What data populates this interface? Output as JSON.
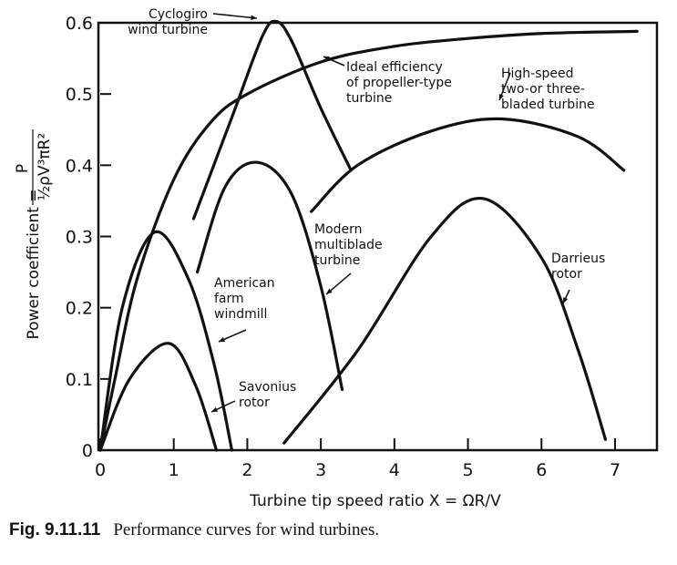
{
  "chart_data": {
    "type": "line",
    "xlabel": "Turbine tip speed ratio  X = ΩR/V",
    "ylabel": "Power coefficient = P / (½ρV³πR²)",
    "ylabel_prefix": "Power coefficient =",
    "ylabel_num": "P",
    "ylabel_den": "½ρV³πR²",
    "xlim": [
      0,
      7.57
    ],
    "ylim": [
      0,
      0.6
    ],
    "xticks": [
      0,
      1,
      2,
      3,
      4,
      5,
      6,
      7
    ],
    "yticks": [
      0,
      0.1,
      0.2,
      0.3,
      0.4,
      0.5,
      0.6
    ],
    "ytick_labels": [
      "0",
      "0.1",
      "0.2",
      "0.3",
      "0.4",
      "0.5",
      "0.6"
    ],
    "grid": false,
    "series": [
      {
        "name": "Ideal efficiency of propeller-type turbine",
        "label_lines": [
          "Ideal efficiency",
          "of propeller-type",
          "turbine"
        ],
        "points": [
          [
            0,
            0
          ],
          [
            0.2,
            0.1
          ],
          [
            0.5,
            0.24
          ],
          [
            1,
            0.38
          ],
          [
            1.5,
            0.46
          ],
          [
            2,
            0.5
          ],
          [
            3,
            0.545
          ],
          [
            4,
            0.567
          ],
          [
            5,
            0.578
          ],
          [
            6,
            0.585
          ],
          [
            7.3,
            0.588
          ]
        ]
      },
      {
        "name": "Cyclogiro wind turbine",
        "label_lines": [
          "Cyclogiro",
          "wind turbine"
        ],
        "points": [
          [
            1.27,
            0.325
          ],
          [
            1.8,
            0.47
          ],
          [
            2.2,
            0.58
          ],
          [
            2.39,
            0.602
          ],
          [
            2.6,
            0.575
          ],
          [
            3.0,
            0.48
          ],
          [
            3.4,
            0.395
          ]
        ]
      },
      {
        "name": "High-speed two-or three-bladed turbine",
        "label_lines": [
          "High-speed",
          "two-or three-",
          "bladed turbine"
        ],
        "points": [
          [
            2.87,
            0.335
          ],
          [
            3.5,
            0.4
          ],
          [
            4.5,
            0.448
          ],
          [
            5.46,
            0.465
          ],
          [
            6.5,
            0.44
          ],
          [
            7.12,
            0.393
          ]
        ]
      },
      {
        "name": "Modern multiblade turbine",
        "label_lines": [
          "Modern",
          "multiblade",
          "turbine"
        ],
        "points": [
          [
            1.32,
            0.25
          ],
          [
            1.7,
            0.37
          ],
          [
            2.14,
            0.404
          ],
          [
            2.6,
            0.36
          ],
          [
            3.0,
            0.23
          ],
          [
            3.29,
            0.085
          ]
        ]
      },
      {
        "name": "American farm windmill",
        "label_lines": [
          "American",
          "farm",
          "windmill"
        ],
        "points": [
          [
            0,
            0
          ],
          [
            0.3,
            0.2
          ],
          [
            0.74,
            0.306
          ],
          [
            1.2,
            0.24
          ],
          [
            1.55,
            0.12
          ],
          [
            1.79,
            0
          ]
        ]
      },
      {
        "name": "Savonius rotor",
        "label_lines": [
          "Savonius",
          "rotor"
        ],
        "points": [
          [
            0,
            0
          ],
          [
            0.4,
            0.1
          ],
          [
            0.93,
            0.15
          ],
          [
            1.3,
            0.09
          ],
          [
            1.58,
            0
          ]
        ]
      },
      {
        "name": "Darrieus rotor",
        "label_lines": [
          "Darrieus",
          "rotor"
        ],
        "points": [
          [
            2.5,
            0.01
          ],
          [
            3.5,
            0.14
          ],
          [
            4.5,
            0.3
          ],
          [
            5.22,
            0.353
          ],
          [
            6.0,
            0.27
          ],
          [
            6.5,
            0.14
          ],
          [
            6.87,
            0.015
          ]
        ]
      }
    ]
  },
  "caption": {
    "fig": "Fig. 9.11.11",
    "text": "Performance curves for wind turbines."
  }
}
